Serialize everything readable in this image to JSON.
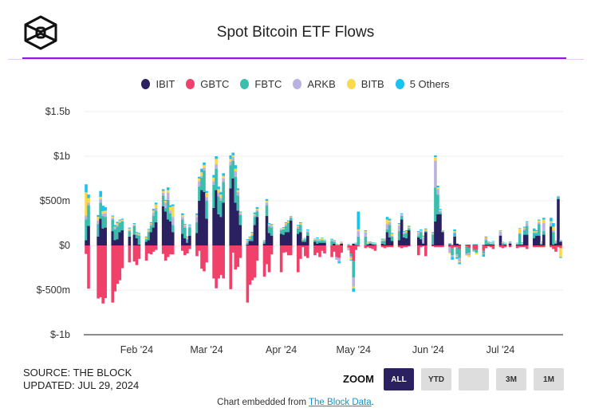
{
  "header": {
    "title": "Spot Bitcoin ETF Flows"
  },
  "footer": {
    "source": "SOURCE: THE BLOCK",
    "updated": "UPDATED: JUL 29, 2024",
    "embed_prefix": "Chart embedded from ",
    "embed_link": "The Block Data",
    "embed_suffix": "."
  },
  "zoom": {
    "label": "ZOOM",
    "buttons": [
      "ALL",
      "YTD",
      "",
      "3M",
      "1M"
    ],
    "active": "ALL"
  },
  "chart_data": {
    "type": "bar",
    "stacked": true,
    "title": "Spot Bitcoin ETF Flows",
    "legend_position": "top",
    "grid": true,
    "ylim": [
      -1000,
      1500
    ],
    "y_unit": "$m",
    "yticks": [
      {
        "v": 1500,
        "label": "$1.5b"
      },
      {
        "v": 1000,
        "label": "$1b"
      },
      {
        "v": 500,
        "label": "$500m"
      },
      {
        "v": 0,
        "label": "$0"
      },
      {
        "v": -500,
        "label": "$-500m"
      },
      {
        "v": -1000,
        "label": "$-1b"
      }
    ],
    "xticks": [
      {
        "d": "2024-02-01",
        "label": "Feb '24"
      },
      {
        "d": "2024-03-01",
        "label": "Mar '24"
      },
      {
        "d": "2024-04-01",
        "label": "Apr '24"
      },
      {
        "d": "2024-05-01",
        "label": "May '24"
      },
      {
        "d": "2024-06-01",
        "label": "Jun '24"
      },
      {
        "d": "2024-07-01",
        "label": "Jul '24"
      }
    ],
    "xlim": [
      "2024-01-10",
      "2024-07-27"
    ],
    "series": [
      {
        "name": "IBIT",
        "color": "#2b2160"
      },
      {
        "name": "GBTC",
        "color": "#f0416b"
      },
      {
        "name": "FBTC",
        "color": "#3dbdab"
      },
      {
        "name": "ARKB",
        "color": "#b9b1e0"
      },
      {
        "name": "BITB",
        "color": "#fcd94a"
      },
      {
        "name": "5 Others",
        "color": "#19c3ef"
      }
    ],
    "columns": [
      "date",
      "IBIT",
      "GBTC",
      "FBTC",
      "ARKB",
      "BITB",
      "5 Others"
    ],
    "rows": [
      [
        "2024-01-11",
        60,
        -95,
        230,
        45,
        260,
        90
      ],
      [
        "2024-01-12",
        220,
        -484,
        230,
        30,
        50,
        40
      ],
      [
        "2024-01-16",
        100,
        -594,
        140,
        40,
        40,
        20
      ],
      [
        "2024-01-17",
        300,
        -580,
        180,
        40,
        25,
        65
      ],
      [
        "2024-01-18",
        190,
        -650,
        140,
        25,
        30,
        60
      ],
      [
        "2024-01-19",
        200,
        -590,
        120,
        40,
        30,
        40
      ],
      [
        "2024-01-22",
        160,
        -640,
        130,
        20,
        15,
        10
      ],
      [
        "2024-01-23",
        60,
        -515,
        120,
        20,
        10,
        20
      ],
      [
        "2024-01-24",
        70,
        -430,
        140,
        20,
        20,
        15
      ],
      [
        "2024-01-25",
        150,
        -390,
        100,
        10,
        20,
        10
      ],
      [
        "2024-01-26",
        170,
        -255,
        100,
        10,
        10,
        10
      ],
      [
        "2024-01-29",
        100,
        -190,
        60,
        10,
        20,
        10
      ],
      [
        "2024-01-31",
        120,
        -180,
        100,
        10,
        10,
        10
      ],
      [
        "2024-02-01",
        80,
        -220,
        40,
        10,
        10,
        10
      ],
      [
        "2024-02-02",
        10,
        -150,
        100,
        10,
        10,
        10
      ],
      [
        "2024-02-05",
        40,
        -170,
        30,
        10,
        10,
        10
      ],
      [
        "2024-02-06",
        60,
        -90,
        90,
        10,
        15,
        10
      ],
      [
        "2024-02-07",
        150,
        -100,
        70,
        20,
        10,
        10
      ],
      [
        "2024-02-08",
        200,
        -70,
        130,
        40,
        20,
        20
      ],
      [
        "2024-02-09",
        260,
        -50,
        130,
        30,
        40,
        20
      ],
      [
        "2024-02-12",
        440,
        -95,
        120,
        30,
        20,
        20
      ],
      [
        "2024-02-13",
        380,
        -170,
        40,
        60,
        20,
        10
      ],
      [
        "2024-02-14",
        290,
        -130,
        220,
        80,
        30,
        30
      ],
      [
        "2024-02-15",
        270,
        -100,
        90,
        30,
        40,
        20
      ],
      [
        "2024-02-16",
        150,
        -100,
        80,
        90,
        120,
        20
      ],
      [
        "2024-02-20",
        130,
        -60,
        160,
        30,
        20,
        20
      ],
      [
        "2024-02-21",
        80,
        -110,
        120,
        20,
        10,
        10
      ],
      [
        "2024-02-22",
        30,
        -90,
        40,
        10,
        10,
        10
      ],
      [
        "2024-02-23",
        110,
        -40,
        90,
        15,
        10,
        10
      ],
      [
        "2024-02-26",
        140,
        -120,
        120,
        60,
        20,
        20
      ],
      [
        "2024-02-27",
        500,
        -60,
        160,
        60,
        30,
        20
      ],
      [
        "2024-02-28",
        620,
        -260,
        140,
        20,
        40,
        40
      ],
      [
        "2024-02-29",
        600,
        -290,
        240,
        30,
        30,
        30
      ],
      [
        "2024-03-01",
        300,
        -190,
        200,
        40,
        50,
        20
      ],
      [
        "2024-03-04",
        420,
        -370,
        260,
        40,
        40,
        30
      ],
      [
        "2024-03-05",
        620,
        -480,
        240,
        50,
        60,
        30
      ],
      [
        "2024-03-06",
        350,
        -370,
        200,
        40,
        40,
        30
      ],
      [
        "2024-03-07",
        320,
        -330,
        180,
        30,
        40,
        30
      ],
      [
        "2024-03-08",
        480,
        -370,
        230,
        40,
        30,
        30
      ],
      [
        "2024-03-11",
        640,
        -490,
        260,
        40,
        30,
        40
      ],
      [
        "2024-03-12",
        750,
        -80,
        200,
        40,
        20,
        30
      ],
      [
        "2024-03-13",
        480,
        -270,
        290,
        60,
        30,
        40
      ],
      [
        "2024-03-14",
        390,
        -240,
        170,
        40,
        20,
        20
      ],
      [
        "2024-03-15",
        230,
        -140,
        110,
        20,
        10,
        10
      ],
      [
        "2024-03-18",
        10,
        -640,
        20,
        20,
        10,
        10
      ],
      [
        "2024-03-19",
        50,
        -440,
        20,
        10,
        10,
        10
      ],
      [
        "2024-03-20",
        50,
        -390,
        60,
        10,
        20,
        10
      ],
      [
        "2024-03-21",
        230,
        -360,
        90,
        20,
        10,
        20
      ],
      [
        "2024-03-22",
        320,
        -170,
        60,
        20,
        10,
        20
      ],
      [
        "2024-03-25",
        20,
        -350,
        20,
        10,
        5,
        5
      ],
      [
        "2024-03-26",
        330,
        -210,
        120,
        30,
        20,
        20
      ],
      [
        "2024-03-27",
        140,
        -300,
        70,
        20,
        10,
        10
      ],
      [
        "2024-03-28",
        110,
        -100,
        90,
        20,
        10,
        10
      ],
      [
        "2024-04-01",
        130,
        -300,
        40,
        10,
        5,
        5
      ],
      [
        "2024-04-02",
        120,
        -80,
        60,
        5,
        10,
        10
      ],
      [
        "2024-04-03",
        150,
        -75,
        70,
        20,
        10,
        10
      ],
      [
        "2024-04-04",
        150,
        -110,
        100,
        10,
        10,
        10
      ],
      [
        "2024-04-05",
        280,
        -110,
        30,
        10,
        5,
        5
      ],
      [
        "2024-04-08",
        130,
        -300,
        60,
        20,
        10,
        10
      ],
      [
        "2024-04-09",
        150,
        -150,
        80,
        10,
        10,
        10
      ],
      [
        "2024-04-10",
        40,
        -20,
        20,
        5,
        5,
        5
      ],
      [
        "2024-04-11",
        40,
        -120,
        30,
        5,
        5,
        5
      ],
      [
        "2024-04-12",
        110,
        -140,
        40,
        10,
        10,
        10
      ],
      [
        "2024-04-15",
        40,
        -110,
        20,
        5,
        5,
        5
      ],
      [
        "2024-04-16",
        20,
        -80,
        30,
        20,
        10,
        10
      ],
      [
        "2024-04-17",
        30,
        -130,
        20,
        10,
        5,
        5
      ],
      [
        "2024-04-18",
        30,
        -60,
        30,
        5,
        20,
        5
      ],
      [
        "2024-04-19",
        30,
        -90,
        20,
        5,
        5,
        5
      ],
      [
        "2024-04-22",
        0,
        -130,
        50,
        10,
        5,
        10
      ],
      [
        "2024-04-23",
        20,
        -70,
        20,
        10,
        5,
        5
      ],
      [
        "2024-04-24",
        0,
        -130,
        10,
        -30,
        5,
        5
      ],
      [
        "2024-04-25",
        0,
        -140,
        10,
        -40,
        5,
        -20
      ],
      [
        "2024-04-26",
        20,
        -80,
        5,
        5,
        5,
        5
      ],
      [
        "2024-04-29",
        0,
        -25,
        5,
        -30,
        5,
        5
      ],
      [
        "2024-04-30",
        0,
        -90,
        -30,
        -20,
        -20,
        -10
      ],
      [
        "2024-05-01",
        20,
        -170,
        -190,
        -100,
        -20,
        -40
      ],
      [
        "2024-05-02",
        5,
        -50,
        10,
        5,
        5,
        5
      ],
      [
        "2024-05-03",
        0,
        -10,
        100,
        60,
        20,
        200
      ],
      [
        "2024-05-06",
        0,
        -30,
        100,
        50,
        10,
        10
      ],
      [
        "2024-05-07",
        10,
        -20,
        10,
        5,
        10,
        5
      ],
      [
        "2024-05-08",
        20,
        -30,
        10,
        5,
        5,
        5
      ],
      [
        "2024-05-09",
        10,
        -40,
        10,
        5,
        5,
        5
      ],
      [
        "2024-05-10",
        5,
        -60,
        10,
        5,
        5,
        5
      ],
      [
        "2024-05-13",
        20,
        -20,
        30,
        5,
        10,
        10
      ],
      [
        "2024-05-14",
        10,
        -30,
        40,
        10,
        10,
        5
      ],
      [
        "2024-05-15",
        150,
        -20,
        30,
        60,
        50,
        30
      ],
      [
        "2024-05-16",
        90,
        -20,
        140,
        30,
        20,
        20
      ],
      [
        "2024-05-17",
        50,
        -20,
        50,
        10,
        20,
        10
      ],
      [
        "2024-05-20",
        60,
        -20,
        100,
        60,
        20,
        10
      ],
      [
        "2024-05-21",
        290,
        -30,
        40,
        10,
        10,
        10
      ],
      [
        "2024-05-22",
        90,
        -20,
        40,
        10,
        10,
        10
      ],
      [
        "2024-05-23",
        80,
        -20,
        60,
        10,
        10,
        10
      ],
      [
        "2024-05-24",
        170,
        -10,
        20,
        10,
        10,
        10
      ],
      [
        "2024-05-28",
        90,
        -110,
        20,
        30,
        10,
        10
      ],
      [
        "2024-05-29",
        70,
        -20,
        80,
        10,
        10,
        10
      ],
      [
        "2024-05-30",
        20,
        -10,
        10,
        60,
        10,
        10
      ],
      [
        "2024-05-31",
        150,
        -120,
        10,
        10,
        10,
        10
      ],
      [
        "2024-06-03",
        10,
        -10,
        110,
        10,
        10,
        10
      ],
      [
        "2024-06-04",
        270,
        -20,
        380,
        300,
        40,
        20
      ],
      [
        "2024-06-05",
        350,
        -20,
        220,
        60,
        20,
        20
      ],
      [
        "2024-06-06",
        350,
        -20,
        20,
        20,
        10,
        10
      ],
      [
        "2024-06-07",
        150,
        -20,
        5,
        5,
        5,
        5
      ],
      [
        "2024-06-10",
        10,
        -20,
        10,
        -60,
        -10,
        5
      ],
      [
        "2024-06-11",
        5,
        -30,
        -80,
        -20,
        5,
        -30
      ],
      [
        "2024-06-12",
        100,
        -20,
        40,
        10,
        10,
        20
      ],
      [
        "2024-06-13",
        20,
        -20,
        -80,
        -20,
        -10,
        -20
      ],
      [
        "2024-06-14",
        10,
        -40,
        -100,
        -40,
        -10,
        -20
      ],
      [
        "2024-06-17",
        5,
        -10,
        -80,
        -20,
        -5,
        5
      ],
      [
        "2024-06-18",
        5,
        -30,
        -50,
        -30,
        -20,
        5
      ],
      [
        "2024-06-20",
        5,
        -40,
        -20,
        -10,
        5,
        5
      ],
      [
        "2024-06-21",
        5,
        -50,
        -30,
        5,
        -20,
        5
      ],
      [
        "2024-06-24",
        5,
        -60,
        -30,
        5,
        -5,
        -30
      ],
      [
        "2024-06-25",
        10,
        -30,
        50,
        20,
        10,
        10
      ],
      [
        "2024-06-26",
        10,
        -10,
        20,
        5,
        5,
        5
      ],
      [
        "2024-06-27",
        10,
        -20,
        10,
        5,
        5,
        5
      ],
      [
        "2024-06-28",
        10,
        -40,
        5,
        20,
        10,
        5
      ],
      [
        "2024-07-01",
        110,
        -20,
        5,
        40,
        10,
        5
      ],
      [
        "2024-07-02",
        5,
        -30,
        20,
        5,
        5,
        5
      ],
      [
        "2024-07-03",
        10,
        -20,
        5,
        5,
        5,
        5
      ],
      [
        "2024-07-05",
        20,
        -20,
        10,
        5,
        5,
        5
      ],
      [
        "2024-07-08",
        10,
        -30,
        5,
        5,
        5,
        5
      ],
      [
        "2024-07-09",
        10,
        -20,
        120,
        10,
        50,
        5
      ],
      [
        "2024-07-10",
        10,
        -20,
        5,
        5,
        10,
        5
      ],
      [
        "2024-07-11",
        120,
        -20,
        50,
        20,
        10,
        10
      ],
      [
        "2024-07-12",
        120,
        -40,
        100,
        30,
        10,
        10
      ],
      [
        "2024-07-15",
        80,
        -20,
        60,
        10,
        10,
        30
      ],
      [
        "2024-07-16",
        110,
        -20,
        30,
        10,
        10,
        10
      ],
      [
        "2024-07-17",
        110,
        -20,
        130,
        20,
        20,
        10
      ],
      [
        "2024-07-18",
        10,
        -20,
        10,
        10,
        10,
        5
      ],
      [
        "2024-07-19",
        120,
        -20,
        40,
        90,
        40,
        20
      ],
      [
        "2024-07-22",
        210,
        -20,
        10,
        30,
        20,
        40
      ],
      [
        "2024-07-23",
        10,
        -40,
        140,
        20,
        40,
        40
      ],
      [
        "2024-07-24",
        20,
        -70,
        10,
        10,
        10,
        5
      ],
      [
        "2024-07-25",
        520,
        -20,
        20,
        5,
        5,
        5
      ],
      [
        "2024-07-26",
        40,
        -30,
        10,
        10,
        -100,
        -10
      ]
    ]
  }
}
